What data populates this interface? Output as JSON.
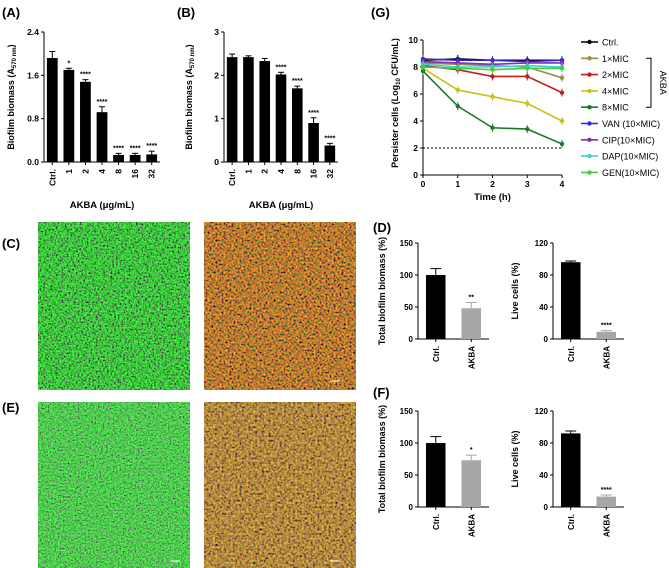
{
  "panel_labels": {
    "A": "(A)",
    "B": "(B)",
    "C": "(C)",
    "D": "(D)",
    "E": "(E)",
    "F": "(F)",
    "G": "(G)"
  },
  "colors": {
    "bar_dark": "#000000",
    "bar_grey": "#a6a6a6",
    "green_micro": "#3f9a2c",
    "red_micro": "#8a2a14"
  },
  "chart_data": [
    {
      "id": "A",
      "type": "bar",
      "categories": [
        "Ctrl.",
        "1",
        "2",
        "4",
        "8",
        "16",
        "32"
      ],
      "values": [
        1.92,
        1.7,
        1.48,
        0.92,
        0.13,
        0.13,
        0.14
      ],
      "errors": [
        0.12,
        0.03,
        0.04,
        0.1,
        0.03,
        0.03,
        0.06
      ],
      "sig": [
        "",
        "*",
        "****",
        "****",
        "****",
        "****",
        "****"
      ],
      "ylim": [
        0,
        2.4
      ],
      "yticks": [
        "0.0",
        "0.8",
        "1.6",
        "2.4"
      ],
      "ylabel_main": "Biofilm biomass (A",
      "ylabel_sub": "570 nm",
      "ylabel_end": ")",
      "xlabel": "AKBA (μg/mL)"
    },
    {
      "id": "B",
      "type": "bar",
      "categories": [
        "Ctrl.",
        "1",
        "2",
        "4",
        "8",
        "16",
        "32"
      ],
      "values": [
        2.42,
        2.42,
        2.33,
        2.02,
        1.7,
        0.9,
        0.38
      ],
      "errors": [
        0.07,
        0.03,
        0.06,
        0.05,
        0.05,
        0.12,
        0.05
      ],
      "sig": [
        "",
        "",
        "",
        "****",
        "****",
        "****",
        "****"
      ],
      "ylim": [
        0,
        3
      ],
      "yticks": [
        "0",
        "1",
        "2",
        "3"
      ],
      "ylabel_main": "Biofilm biomass (A",
      "ylabel_sub": "570 nm",
      "ylabel_end": ")",
      "xlabel": "AKBA (μg/mL)"
    },
    {
      "id": "G",
      "type": "line",
      "x": [
        0,
        1,
        2,
        3,
        4
      ],
      "xlim": [
        0,
        4
      ],
      "ylim": [
        0,
        10
      ],
      "xticks": [
        "0",
        "1",
        "2",
        "3",
        "4"
      ],
      "yticks": [
        "0",
        "2",
        "4",
        "6",
        "8",
        "10"
      ],
      "xlabel": "Time (h)",
      "ylabel_main": "Persister cells (Log",
      "ylabel_sub": "10",
      "ylabel_end": " CFU/mL)",
      "dotted_line_y": 2,
      "bracket_label": "AKBA",
      "series": [
        {
          "name": "Ctrl.",
          "color": "#000000",
          "values": [
            8.5,
            8.6,
            8.5,
            8.5,
            8.5
          ]
        },
        {
          "name": "1×MIC",
          "color": "#a08a4a",
          "values": [
            8.3,
            8.2,
            8.1,
            8.0,
            7.2
          ]
        },
        {
          "name": "2×MIC",
          "color": "#c0201e",
          "values": [
            8.1,
            7.8,
            7.3,
            7.3,
            6.1
          ]
        },
        {
          "name": "4×MIC",
          "color": "#c9c21a",
          "values": [
            7.9,
            6.3,
            5.8,
            5.3,
            4.0
          ]
        },
        {
          "name": "8×MIC",
          "color": "#1a7a2a",
          "values": [
            7.7,
            5.1,
            3.5,
            3.4,
            2.3
          ]
        },
        {
          "name": "VAN (10×MIC)",
          "color": "#2b2bd6",
          "values": [
            8.6,
            8.5,
            8.5,
            8.4,
            8.5
          ]
        },
        {
          "name": "CIP(10×MIC)",
          "color": "#8a2bb0",
          "values": [
            8.4,
            8.3,
            8.2,
            8.3,
            8.3
          ]
        },
        {
          "name": "DAP(10×MIC)",
          "color": "#3fd0d8",
          "values": [
            8.2,
            8.0,
            8.0,
            8.1,
            8.0
          ]
        },
        {
          "name": "GEN(10×MIC)",
          "color": "#3fd03f",
          "values": [
            8.0,
            7.9,
            7.8,
            7.9,
            7.9
          ]
        }
      ]
    },
    {
      "id": "D1",
      "type": "bar",
      "categories": [
        "Ctrl.",
        "AKBA"
      ],
      "values": [
        100,
        48
      ],
      "errors": [
        10,
        9
      ],
      "sig": [
        "",
        "**"
      ],
      "ylim": [
        0,
        150
      ],
      "yticks": [
        "0",
        "50",
        "100",
        "150"
      ],
      "ylabel": "Total biofilm biomass (%)"
    },
    {
      "id": "D2",
      "type": "bar",
      "categories": [
        "Ctrl.",
        "AKBA"
      ],
      "values": [
        96,
        9
      ],
      "errors": [
        1.5,
        1.5
      ],
      "sig": [
        "",
        "****"
      ],
      "ylim": [
        0,
        120
      ],
      "yticks": [
        "0",
        "40",
        "80",
        "120"
      ],
      "ylabel": "Live cells (%)"
    },
    {
      "id": "F1",
      "type": "bar",
      "categories": [
        "Ctrl.",
        "AKBA"
      ],
      "values": [
        100,
        73
      ],
      "errors": [
        10,
        8
      ],
      "sig": [
        "",
        "*"
      ],
      "ylim": [
        0,
        150
      ],
      "yticks": [
        "0",
        "50",
        "100",
        "150"
      ],
      "ylabel": "Total biofilm biomass (%)"
    },
    {
      "id": "F2",
      "type": "bar",
      "categories": [
        "Ctrl.",
        "AKBA"
      ],
      "values": [
        92,
        13
      ],
      "errors": [
        3,
        2
      ],
      "sig": [
        "",
        "****"
      ],
      "ylim": [
        0,
        120
      ],
      "yticks": [
        "0",
        "40",
        "80",
        "120"
      ],
      "ylabel": "Live cells (%)"
    }
  ]
}
